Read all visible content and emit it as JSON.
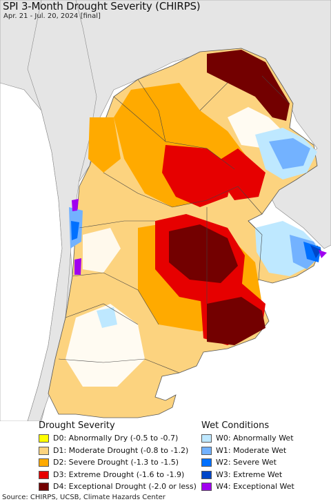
{
  "title": "SPI 3-Month Drought Severity (CHIRPS)",
  "subtitle": "Apr. 21 - Jul. 20, 2024 [final]",
  "colors": {
    "background": "#ffffff",
    "ocean": "#ffffff",
    "outside_land": "#e5e5e5",
    "border": "#555555",
    "d0": "#ffff00",
    "d1": "#fcd37f",
    "d2": "#ffaa00",
    "d3": "#e60000",
    "d4": "#730000",
    "w0": "#bee8ff",
    "w1": "#73b2ff",
    "w2": "#0070ff",
    "w3": "#0046c8",
    "w4": "#a000f0"
  },
  "legend": {
    "drought_heading": "Drought Severity",
    "wet_heading": "Wet Conditions",
    "drought": [
      {
        "label": "D0: Abnormally Dry (-0.5 to -0.7)",
        "color": "#ffff00"
      },
      {
        "label": "D1: Moderate Drought (-0.8 to -1.2)",
        "color": "#fcd37f"
      },
      {
        "label": "D2: Severe Drought (-1.3 to -1.5)",
        "color": "#ffaa00"
      },
      {
        "label": "D3: Extreme Drought (-1.6 to -1.9)",
        "color": "#e60000"
      },
      {
        "label": "D4: Exceptional Drought (-2.0 or less)",
        "color": "#730000"
      }
    ],
    "wet": [
      {
        "label": "W0: Abnormally Wet",
        "color": "#bee8ff"
      },
      {
        "label": "W1: Moderate Wet",
        "color": "#73b2ff"
      },
      {
        "label": "W2: Severe Wet",
        "color": "#0070ff"
      },
      {
        "label": "W3: Extreme Wet",
        "color": "#0046c8"
      },
      {
        "label": "W4: Exceptional Wet",
        "color": "#a000f0"
      }
    ]
  },
  "source": "Source: CHIRPS, UCSB, Climate Hazards Center"
}
